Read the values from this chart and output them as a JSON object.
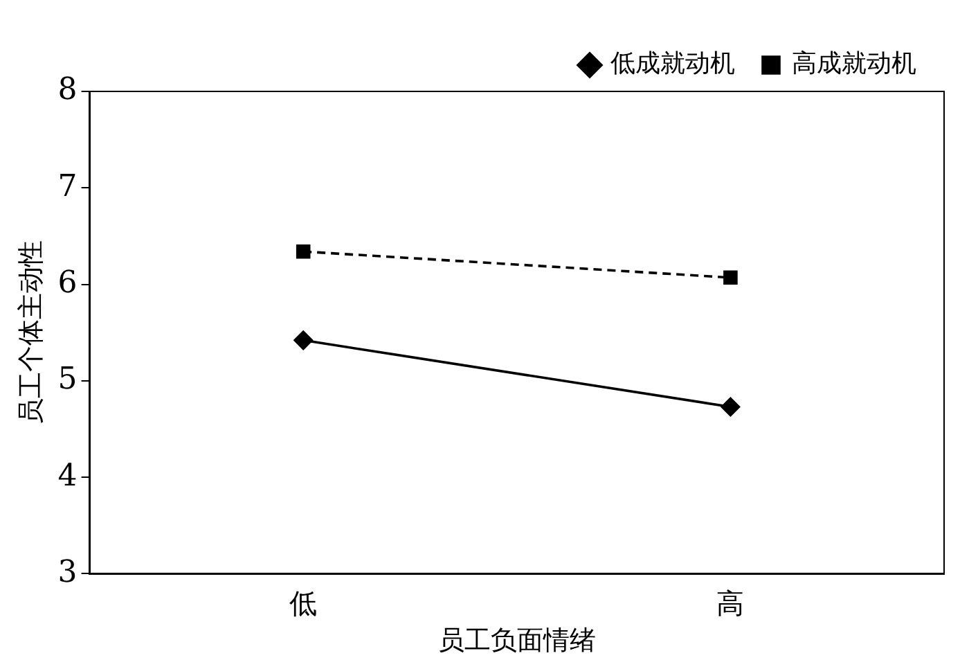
{
  "chart_data": {
    "type": "line",
    "xlabel": "员工负面情绪",
    "ylabel": "员工个体主动性",
    "categories": [
      "低",
      "高"
    ],
    "series": [
      {
        "name": "低成就动机",
        "color": "#000000",
        "values": [
          5.42,
          4.73
        ],
        "marker": "diamond",
        "line_style": "solid"
      },
      {
        "name": "高成就动机",
        "color": "#000000",
        "values": [
          6.34,
          6.07
        ],
        "marker": "square",
        "line_style": "dashed"
      }
    ],
    "ylim": [
      3,
      8
    ],
    "yticks": [
      3,
      4,
      5,
      6,
      7,
      8
    ],
    "grid": false,
    "legend": "top right"
  }
}
